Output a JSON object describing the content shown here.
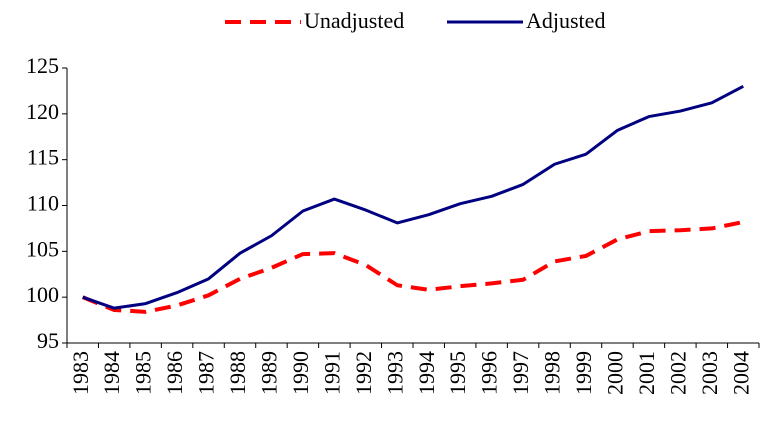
{
  "chart_data": {
    "type": "line",
    "categories": [
      "1983",
      "1984",
      "1985",
      "1986",
      "1987",
      "1988",
      "1989",
      "1990",
      "1991",
      "1992",
      "1993",
      "1994",
      "1995",
      "1996",
      "1997",
      "1998",
      "1999",
      "2000",
      "2001",
      "2002",
      "2003",
      "2004"
    ],
    "series": [
      {
        "name": "Unadjusted",
        "color": "#ff0000",
        "dashed": true,
        "values": [
          100,
          98.6,
          98.4,
          99.1,
          100.2,
          102,
          103.2,
          104.7,
          104.8,
          103.5,
          101.3,
          100.8,
          101.2,
          101.5,
          101.9,
          103.9,
          104.5,
          106.3,
          107.2,
          107.3,
          107.5,
          108.2
        ]
      },
      {
        "name": "Adjusted",
        "color": "#000080",
        "dashed": false,
        "values": [
          100,
          98.8,
          99.3,
          100.5,
          102,
          104.8,
          106.7,
          109.4,
          110.7,
          109.5,
          108.1,
          109,
          110.2,
          111,
          112.3,
          114.5,
          115.6,
          118.2,
          119.7,
          120.3,
          121.2,
          123
        ]
      }
    ],
    "ylim": [
      95,
      125
    ],
    "yticks": [
      95,
      100,
      105,
      110,
      115,
      120,
      125
    ],
    "grid": false,
    "legend": "top"
  }
}
